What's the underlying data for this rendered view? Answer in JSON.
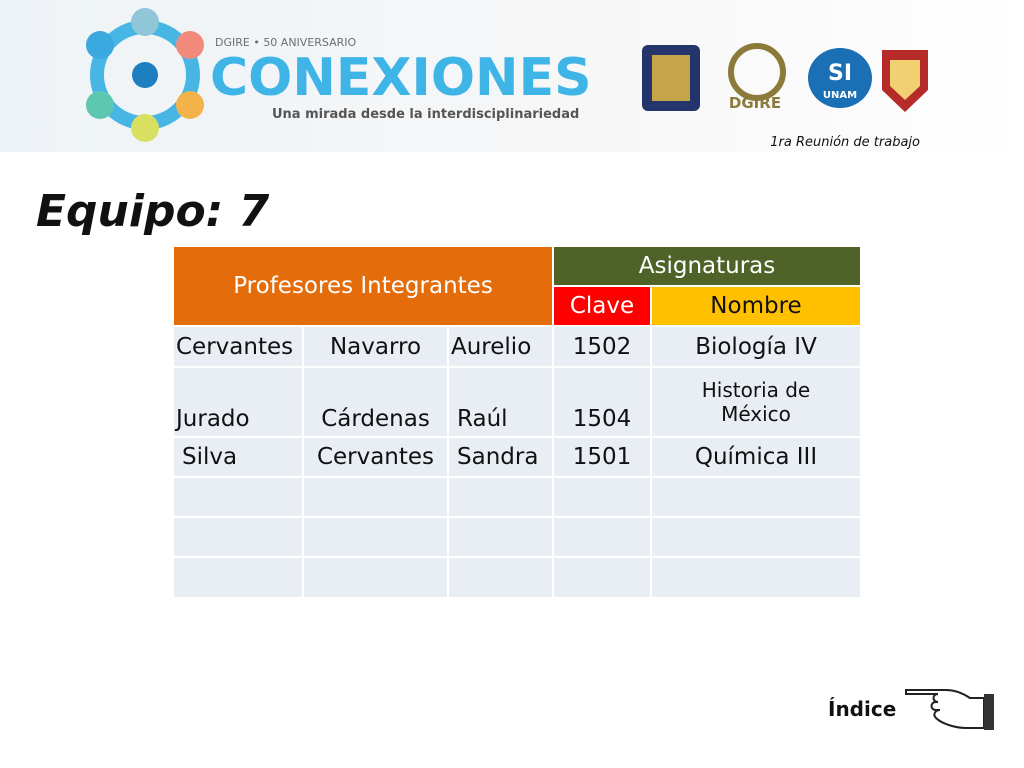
{
  "header": {
    "badge": "DGIRE • 50 ANIVERSARIO",
    "brand": "CONEXIONES",
    "tagline": "Una mirada desde la interdisciplinariedad",
    "logos": [
      "DGIRE",
      "SI",
      "UNAM"
    ],
    "meeting": "1ra Reunión de trabajo"
  },
  "title": "Equipo: 7",
  "table": {
    "group_left": "Profesores Integrantes",
    "group_right": "Asignaturas",
    "col_clave": "Clave",
    "col_nombre": "Nombre",
    "rows": [
      [
        "Cervantes",
        "Navarro",
        "Aurelio",
        "1502",
        "Biología IV"
      ],
      [
        "Jurado",
        "Cárdenas",
        "Raúl",
        "1504",
        "Historia de México"
      ],
      [
        "Silva",
        "Cervantes",
        "Sandra",
        "1501",
        "Química III"
      ]
    ]
  },
  "footer": {
    "link": "Índice"
  }
}
